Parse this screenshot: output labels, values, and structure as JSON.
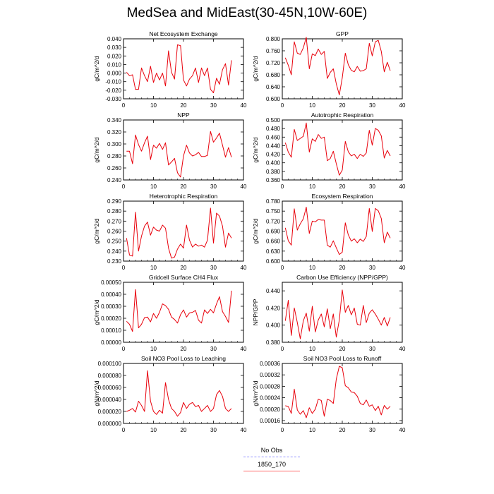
{
  "title": "MedSea and MidEast(30-45N,10W-60E)",
  "legend": [
    {
      "label": "No Obs",
      "color": "#8f8fff",
      "style": "dashed"
    },
    {
      "label": "1850_170",
      "color": "#ff6a6a",
      "style": "solid"
    }
  ],
  "line_color": "#e8000b",
  "chart_data": [
    {
      "type": "line",
      "title": "Net Ecosystem Exchange",
      "xlabel": "",
      "ylabel": "gC/m^2/d",
      "xlim": [
        0,
        40
      ],
      "xticks": [
        "0",
        "10",
        "20",
        "30",
        "40"
      ],
      "ylim": [
        -0.03,
        0.04
      ],
      "yticks": [
        "-0.030",
        "-0.020",
        "-0.010",
        "0.000",
        "0.010",
        "0.020",
        "0.030",
        "0.040"
      ],
      "x": [
        1,
        2,
        3,
        4,
        5,
        6,
        7,
        8,
        9,
        10,
        11,
        12,
        13,
        14,
        15,
        16,
        17,
        18,
        19,
        20,
        21,
        22,
        23,
        24,
        25,
        26,
        27,
        28,
        29,
        30,
        31,
        32,
        33,
        34,
        35,
        36
      ],
      "y": [
        0.001,
        -0.003,
        -0.002,
        -0.019,
        -0.019,
        0.006,
        -0.003,
        -0.01,
        0.008,
        -0.011,
        0.0,
        -0.008,
        0.0,
        -0.015,
        0.026,
        0.001,
        -0.007,
        0.033,
        0.032,
        -0.008,
        -0.015,
        -0.007,
        -0.003,
        0.006,
        -0.011,
        0.006,
        -0.003,
        0.006,
        -0.019,
        -0.023,
        -0.006,
        -0.013,
        0.004,
        0.011,
        -0.014,
        0.015
      ]
    },
    {
      "type": "line",
      "title": "GPP",
      "xlabel": "",
      "ylabel": "gC/m^2/d",
      "xlim": [
        0,
        40
      ],
      "xticks": [
        "0",
        "10",
        "20",
        "30",
        "40"
      ],
      "ylim": [
        0.6,
        0.8
      ],
      "yticks": [
        "0.600",
        "0.640",
        "0.680",
        "0.720",
        "0.760",
        "0.800"
      ],
      "x": [
        1,
        2,
        3,
        4,
        5,
        6,
        7,
        8,
        9,
        10,
        11,
        12,
        13,
        14,
        15,
        16,
        17,
        18,
        19,
        20,
        21,
        22,
        23,
        24,
        25,
        26,
        27,
        28,
        29,
        30,
        31,
        32,
        33,
        34,
        35,
        36
      ],
      "y": [
        0.737,
        0.712,
        0.68,
        0.79,
        0.752,
        0.748,
        0.77,
        0.805,
        0.7,
        0.75,
        0.744,
        0.766,
        0.748,
        0.758,
        0.668,
        0.688,
        0.7,
        0.65,
        0.613,
        0.67,
        0.752,
        0.714,
        0.695,
        0.69,
        0.708,
        0.692,
        0.694,
        0.7,
        0.785,
        0.743,
        0.79,
        0.795,
        0.758,
        0.69,
        0.722,
        0.694
      ]
    },
    {
      "type": "line",
      "title": "NPP",
      "xlabel": "",
      "ylabel": "gC/m^2/d",
      "xlim": [
        0,
        40
      ],
      "xticks": [
        "0",
        "10",
        "20",
        "30",
        "40"
      ],
      "ylim": [
        0.24,
        0.34
      ],
      "yticks": [
        "0.240",
        "0.260",
        "0.280",
        "0.300",
        "0.320",
        "0.340"
      ],
      "x": [
        1,
        2,
        3,
        4,
        5,
        6,
        7,
        8,
        9,
        10,
        11,
        12,
        13,
        14,
        15,
        16,
        17,
        18,
        19,
        20,
        21,
        22,
        23,
        24,
        25,
        26,
        27,
        28,
        29,
        30,
        31,
        32,
        33,
        34,
        35,
        36
      ],
      "y": [
        0.288,
        0.288,
        0.267,
        0.315,
        0.299,
        0.288,
        0.302,
        0.313,
        0.274,
        0.298,
        0.293,
        0.301,
        0.291,
        0.302,
        0.265,
        0.27,
        0.276,
        0.252,
        0.245,
        0.28,
        0.298,
        0.285,
        0.28,
        0.282,
        0.286,
        0.279,
        0.279,
        0.281,
        0.321,
        0.303,
        0.31,
        0.318,
        0.298,
        0.278,
        0.294,
        0.278
      ]
    },
    {
      "type": "line",
      "title": "Autotrophic Respiration",
      "xlabel": "",
      "ylabel": "gC/m^2/d",
      "xlim": [
        0,
        40
      ],
      "xticks": [
        "0",
        "10",
        "20",
        "30",
        "40"
      ],
      "ylim": [
        0.36,
        0.5
      ],
      "yticks": [
        "0.360",
        "0.380",
        "0.400",
        "0.420",
        "0.440",
        "0.460",
        "0.480",
        "0.500"
      ],
      "x": [
        1,
        2,
        3,
        4,
        5,
        6,
        7,
        8,
        9,
        10,
        11,
        12,
        13,
        14,
        15,
        16,
        17,
        18,
        19,
        20,
        21,
        22,
        23,
        24,
        25,
        26,
        27,
        28,
        29,
        30,
        31,
        32,
        33,
        34,
        35,
        36
      ],
      "y": [
        0.447,
        0.425,
        0.413,
        0.478,
        0.452,
        0.457,
        0.462,
        0.493,
        0.425,
        0.456,
        0.45,
        0.466,
        0.457,
        0.46,
        0.405,
        0.41,
        0.427,
        0.398,
        0.371,
        0.383,
        0.45,
        0.426,
        0.416,
        0.42,
        0.41,
        0.42,
        0.415,
        0.423,
        0.476,
        0.441,
        0.48,
        0.476,
        0.463,
        0.411,
        0.429,
        0.416
      ]
    },
    {
      "type": "line",
      "title": "Heterotrophic Respiration",
      "xlabel": "",
      "ylabel": "gC/m^2/d",
      "xlim": [
        0,
        40
      ],
      "xticks": [
        "0",
        "10",
        "20",
        "30",
        "40"
      ],
      "ylim": [
        0.23,
        0.29
      ],
      "yticks": [
        "0.230",
        "0.240",
        "0.250",
        "0.260",
        "0.270",
        "0.280",
        "0.290"
      ],
      "x": [
        1,
        2,
        3,
        4,
        5,
        6,
        7,
        8,
        9,
        10,
        11,
        12,
        13,
        14,
        15,
        16,
        17,
        18,
        19,
        20,
        21,
        22,
        23,
        24,
        25,
        26,
        27,
        28,
        29,
        30,
        31,
        32,
        33,
        34,
        35,
        36
      ],
      "y": [
        0.253,
        0.236,
        0.235,
        0.279,
        0.24,
        0.255,
        0.265,
        0.269,
        0.256,
        0.264,
        0.261,
        0.26,
        0.266,
        0.263,
        0.243,
        0.233,
        0.234,
        0.242,
        0.247,
        0.243,
        0.266,
        0.251,
        0.244,
        0.247,
        0.245,
        0.246,
        0.244,
        0.251,
        0.283,
        0.248,
        0.278,
        0.275,
        0.265,
        0.244,
        0.258,
        0.253
      ]
    },
    {
      "type": "line",
      "title": "Ecosystem Respiration",
      "xlabel": "",
      "ylabel": "gC/m^2/d",
      "xlim": [
        0,
        40
      ],
      "xticks": [
        "0",
        "10",
        "20",
        "30",
        "40"
      ],
      "ylim": [
        0.6,
        0.78
      ],
      "yticks": [
        "0.600",
        "0.630",
        "0.660",
        "0.690",
        "0.720",
        "0.750",
        "0.780"
      ],
      "x": [
        1,
        2,
        3,
        4,
        5,
        6,
        7,
        8,
        9,
        10,
        11,
        12,
        13,
        14,
        15,
        16,
        17,
        18,
        19,
        20,
        21,
        22,
        23,
        24,
        25,
        26,
        27,
        28,
        29,
        30,
        31,
        32,
        33,
        34,
        35,
        36
      ],
      "y": [
        0.7,
        0.661,
        0.648,
        0.757,
        0.693,
        0.712,
        0.727,
        0.762,
        0.683,
        0.72,
        0.718,
        0.725,
        0.723,
        0.723,
        0.648,
        0.642,
        0.661,
        0.64,
        0.62,
        0.627,
        0.715,
        0.679,
        0.66,
        0.667,
        0.655,
        0.666,
        0.659,
        0.674,
        0.758,
        0.689,
        0.758,
        0.751,
        0.728,
        0.655,
        0.687,
        0.669
      ]
    },
    {
      "type": "line",
      "title": "Gridcell Surface CH4 Flux",
      "xlabel": "",
      "ylabel": "gC/m^2/d",
      "xlim": [
        0,
        40
      ],
      "xticks": [
        "0",
        "10",
        "20",
        "30",
        "40"
      ],
      "ylim": [
        0.0,
        0.0005
      ],
      "yticks": [
        "0.00000",
        "0.00010",
        "0.00020",
        "0.00030",
        "0.00040",
        "0.00050"
      ],
      "x": [
        1,
        2,
        3,
        4,
        5,
        6,
        7,
        8,
        9,
        10,
        11,
        12,
        13,
        14,
        15,
        16,
        17,
        18,
        19,
        20,
        21,
        22,
        23,
        24,
        25,
        26,
        27,
        28,
        29,
        30,
        31,
        32,
        33,
        34,
        35,
        36
      ],
      "y": [
        0.000175,
        0.00015,
        9e-05,
        0.00044,
        0.00012,
        0.00015,
        0.000205,
        0.00021,
        0.00017,
        0.00024,
        0.0002,
        0.00025,
        0.00032,
        0.000305,
        0.000275,
        0.00021,
        0.00019,
        0.00016,
        0.00023,
        0.00027,
        0.00021,
        0.000245,
        0.00025,
        0.000265,
        0.000185,
        0.00016,
        0.00027,
        0.00024,
        0.000275,
        0.000245,
        0.00032,
        0.00038,
        0.000255,
        0.000215,
        0.000165,
        0.00043
      ]
    },
    {
      "type": "line",
      "title": "Carbon Use Efficiency (NPP/GPP)",
      "xlabel": "",
      "ylabel": "NPP/GPP",
      "xlim": [
        0,
        40
      ],
      "xticks": [
        "0",
        "10",
        "20",
        "30",
        "40"
      ],
      "ylim": [
        0.38,
        0.45
      ],
      "yticks": [
        "0.380",
        "0.400",
        "0.420",
        "0.440"
      ],
      "x": [
        1,
        2,
        3,
        4,
        5,
        6,
        7,
        8,
        9,
        10,
        11,
        12,
        13,
        14,
        15,
        16,
        17,
        18,
        19,
        20,
        21,
        22,
        23,
        24,
        25,
        26,
        27,
        28,
        29,
        30,
        31,
        32,
        33,
        34,
        35,
        36
      ],
      "y": [
        0.405,
        0.429,
        0.388,
        0.42,
        0.403,
        0.384,
        0.405,
        0.414,
        0.393,
        0.422,
        0.392,
        0.406,
        0.413,
        0.398,
        0.419,
        0.396,
        0.413,
        0.386,
        0.406,
        0.441,
        0.415,
        0.423,
        0.412,
        0.42,
        0.401,
        0.4,
        0.423,
        0.403,
        0.414,
        0.418,
        0.413,
        0.407,
        0.4,
        0.409,
        0.399,
        0.409
      ]
    },
    {
      "type": "line",
      "title": "Soil NO3 Pool Loss to Leaching",
      "xlabel": "",
      "ylabel": "gN/m^2/d",
      "xlim": [
        0,
        40
      ],
      "xticks": [
        "0",
        "10",
        "20",
        "30",
        "40"
      ],
      "ylim": [
        0.0,
        0.0001
      ],
      "yticks": [
        "0.000000",
        "0.000020",
        "0.000040",
        "0.000060",
        "0.000080",
        "0.000100"
      ],
      "x": [
        1,
        2,
        3,
        4,
        5,
        6,
        7,
        8,
        9,
        10,
        11,
        12,
        13,
        14,
        15,
        16,
        17,
        18,
        19,
        20,
        21,
        22,
        23,
        24,
        25,
        26,
        27,
        28,
        29,
        30,
        31,
        32,
        33,
        34,
        35,
        36
      ],
      "y": [
        2e-05,
        2.2e-05,
        2.5e-05,
        1.9e-05,
        3.7e-05,
        3e-05,
        2e-05,
        8.8e-05,
        3.7e-05,
        2e-05,
        1.5e-05,
        2.2e-05,
        1.7e-05,
        6.8e-05,
        4e-05,
        2.5e-05,
        2e-05,
        1.2e-05,
        1.8e-05,
        3.5e-05,
        2.5e-05,
        3.2e-05,
        3.5e-05,
        2.8e-05,
        3e-05,
        2e-05,
        2.5e-05,
        3e-05,
        2e-05,
        2.5e-05,
        4.8e-05,
        5.5e-05,
        4.5e-05,
        2.5e-05,
        2e-05,
        2.5e-05
      ]
    },
    {
      "type": "line",
      "title": "Soil NO3 Pool Loss to Runoff",
      "xlabel": "",
      "ylabel": "gN/m^2/d",
      "xlim": [
        0,
        40
      ],
      "xticks": [
        "0",
        "10",
        "20",
        "30",
        "40"
      ],
      "ylim": [
        0.00015,
        0.00036
      ],
      "yticks": [
        "0.00016",
        "0.00020",
        "0.00024",
        "0.00028",
        "0.00032",
        "0.00036"
      ],
      "x": [
        1,
        2,
        3,
        4,
        5,
        6,
        7,
        8,
        9,
        10,
        11,
        12,
        13,
        14,
        15,
        16,
        17,
        18,
        19,
        20,
        21,
        22,
        23,
        24,
        25,
        26,
        27,
        28,
        29,
        30,
        31,
        32,
        33,
        34,
        35,
        36
      ],
      "y": [
        0.000212,
        0.000209,
        0.000185,
        0.00027,
        0.000197,
        0.000182,
        0.000195,
        0.00017,
        0.000205,
        0.000185,
        0.0002,
        0.000235,
        0.00023,
        0.000175,
        0.000235,
        0.00023,
        0.00022,
        0.000305,
        0.00035,
        0.000345,
        0.000282,
        0.000275,
        0.00026,
        0.000258,
        0.000245,
        0.00022,
        0.000215,
        0.000232,
        0.00021,
        0.000215,
        0.000195,
        0.00021,
        0.00018,
        0.000213,
        0.0002,
        0.00021
      ]
    }
  ]
}
